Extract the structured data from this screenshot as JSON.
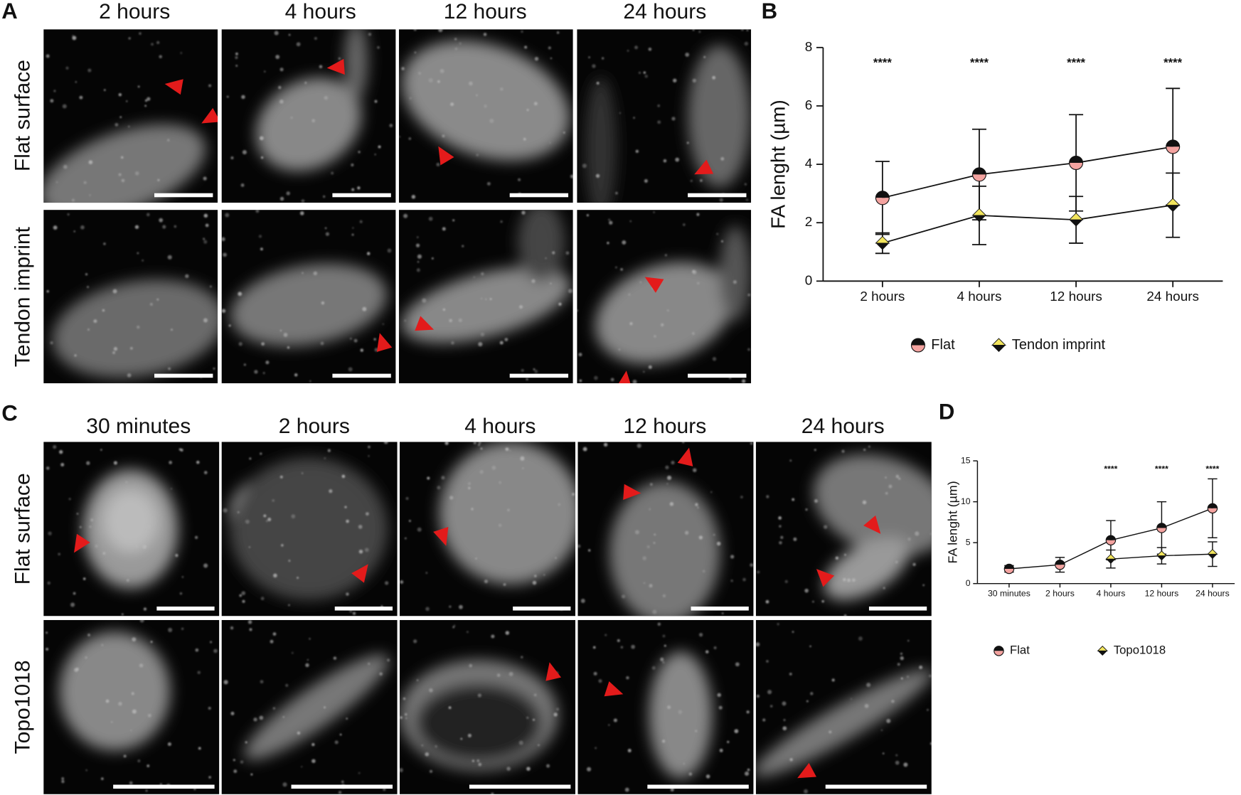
{
  "figure": {
    "panel_labels": [
      "A",
      "B",
      "C",
      "D"
    ],
    "panel_a": {
      "columns": [
        "2 hours",
        "4 hours",
        "12 hours",
        "24 hours"
      ],
      "rows": [
        "Flat surface",
        "Tendon imprint"
      ]
    },
    "panel_c": {
      "columns": [
        "30 minutes",
        "2 hours",
        "4 hours",
        "12 hours",
        "24 hours"
      ],
      "rows": [
        "Flat surface",
        "Topo1018"
      ]
    }
  },
  "chart_data": [
    {
      "type": "line",
      "ylabel": "FA lenght (µm)",
      "categories": [
        "2 hours",
        "4 hours",
        "12 hours",
        "24 hours"
      ],
      "ylim": [
        0,
        8
      ],
      "yticks": [
        0,
        2,
        4,
        6,
        8
      ],
      "series": [
        {
          "name": "Flat",
          "color": "#f4a3a0",
          "marker": "circle",
          "values": [
            2.85,
            3.65,
            4.05,
            4.6
          ],
          "errors": [
            1.25,
            1.55,
            1.65,
            2.0
          ]
        },
        {
          "name": "Tendon imprint",
          "color": "#f2e55c",
          "marker": "diamond",
          "values": [
            1.3,
            2.25,
            2.1,
            2.6
          ],
          "errors": [
            0.35,
            1.0,
            0.8,
            1.1
          ]
        }
      ],
      "annotations": [
        {
          "category": "2 hours",
          "text": "****"
        },
        {
          "category": "4 hours",
          "text": "****"
        },
        {
          "category": "12 hours",
          "text": "****"
        },
        {
          "category": "24 hours",
          "text": "****"
        }
      ]
    },
    {
      "type": "line",
      "ylabel": "FA lenght (µm)",
      "categories": [
        "30 minutes",
        "2 hours",
        "4 hours",
        "12 hours",
        "24 hours"
      ],
      "ylim": [
        0,
        15
      ],
      "yticks": [
        0,
        5,
        10,
        15
      ],
      "series": [
        {
          "name": "Flat",
          "color": "#f4a3a0",
          "marker": "circle",
          "values": [
            1.8,
            2.3,
            5.3,
            6.8,
            9.2
          ],
          "errors": [
            0.4,
            0.9,
            2.4,
            3.2,
            3.6
          ]
        },
        {
          "name": "Topo1018",
          "color": "#f2e55c",
          "marker": "diamond",
          "values": [
            null,
            null,
            3.0,
            3.4,
            3.6
          ],
          "errors": [
            null,
            null,
            1.1,
            1.0,
            1.5
          ]
        }
      ],
      "annotations": [
        {
          "category": "4 hours",
          "text": "****"
        },
        {
          "category": "12 hours",
          "text": "****"
        },
        {
          "category": "24 hours",
          "text": "****"
        }
      ]
    }
  ]
}
